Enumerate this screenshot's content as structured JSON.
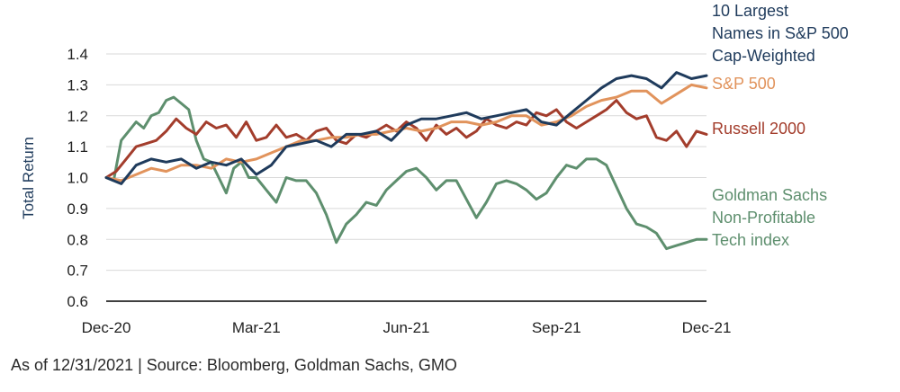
{
  "chart_data": {
    "type": "line",
    "title": "",
    "xlabel": "",
    "ylabel": "Total Return",
    "ylim": [
      0.6,
      1.4
    ],
    "yticks": [
      "0.6",
      "0.7",
      "0.8",
      "0.9",
      "1.0",
      "1.1",
      "1.2",
      "1.3",
      "1.4"
    ],
    "xlim": [
      0,
      12
    ],
    "xticks": [
      {
        "x": 0,
        "label": "Dec-20"
      },
      {
        "x": 3,
        "label": "Mar-21"
      },
      {
        "x": 6,
        "label": "Jun-21"
      },
      {
        "x": 9,
        "label": "Sep-21"
      },
      {
        "x": 12,
        "label": "Dec-21"
      }
    ],
    "series": [
      {
        "name": "Goldman Sachs Non-Profitable Tech index",
        "legend_lines": [
          "Goldman Sachs",
          "Non-Profitable",
          "Tech index"
        ],
        "color": "#5e8f6e",
        "x": [
          0,
          0.15,
          0.3,
          0.45,
          0.6,
          0.75,
          0.9,
          1.05,
          1.2,
          1.35,
          1.5,
          1.65,
          1.8,
          1.95,
          2.1,
          2.25,
          2.4,
          2.55,
          2.7,
          2.85,
          3.0,
          3.2,
          3.4,
          3.6,
          3.8,
          4.0,
          4.2,
          4.4,
          4.6,
          4.8,
          5.0,
          5.2,
          5.4,
          5.6,
          5.8,
          6.0,
          6.2,
          6.4,
          6.6,
          6.8,
          7.0,
          7.2,
          7.4,
          7.6,
          7.8,
          8.0,
          8.2,
          8.4,
          8.6,
          8.8,
          9.0,
          9.2,
          9.4,
          9.6,
          9.8,
          10.0,
          10.2,
          10.4,
          10.6,
          10.8,
          11.0,
          11.2,
          11.4,
          11.6,
          11.8,
          12.0
        ],
        "values": [
          1.0,
          0.99,
          1.12,
          1.15,
          1.18,
          1.16,
          1.2,
          1.21,
          1.25,
          1.26,
          1.24,
          1.22,
          1.12,
          1.06,
          1.05,
          1.0,
          0.95,
          1.03,
          1.05,
          1.0,
          1.0,
          0.96,
          0.92,
          1.0,
          0.99,
          0.99,
          0.95,
          0.88,
          0.79,
          0.85,
          0.88,
          0.92,
          0.91,
          0.96,
          0.99,
          1.02,
          1.03,
          1.0,
          0.96,
          0.99,
          0.99,
          0.93,
          0.87,
          0.92,
          0.98,
          0.99,
          0.98,
          0.96,
          0.93,
          0.95,
          1.0,
          1.04,
          1.03,
          1.06,
          1.06,
          1.04,
          0.97,
          0.9,
          0.85,
          0.84,
          0.82,
          0.77,
          0.78,
          0.79,
          0.8,
          0.8
        ]
      },
      {
        "name": "Russell 2000",
        "legend_lines": [
          "Russell 2000"
        ],
        "color": "#a33d2c",
        "x": [
          0,
          0.2,
          0.4,
          0.6,
          0.8,
          1.0,
          1.2,
          1.4,
          1.6,
          1.8,
          2.0,
          2.2,
          2.4,
          2.6,
          2.8,
          3.0,
          3.2,
          3.4,
          3.6,
          3.8,
          4.0,
          4.2,
          4.4,
          4.6,
          4.8,
          5.0,
          5.2,
          5.4,
          5.6,
          5.8,
          6.0,
          6.2,
          6.4,
          6.6,
          6.8,
          7.0,
          7.2,
          7.4,
          7.6,
          7.8,
          8.0,
          8.2,
          8.4,
          8.6,
          8.8,
          9.0,
          9.2,
          9.4,
          9.6,
          9.8,
          10.0,
          10.2,
          10.4,
          10.6,
          10.8,
          11.0,
          11.2,
          11.4,
          11.6,
          11.8,
          12.0
        ],
        "values": [
          1.0,
          1.02,
          1.06,
          1.1,
          1.11,
          1.12,
          1.15,
          1.19,
          1.16,
          1.14,
          1.18,
          1.16,
          1.17,
          1.13,
          1.18,
          1.12,
          1.13,
          1.17,
          1.13,
          1.14,
          1.12,
          1.15,
          1.16,
          1.12,
          1.11,
          1.14,
          1.13,
          1.15,
          1.17,
          1.15,
          1.18,
          1.16,
          1.12,
          1.17,
          1.14,
          1.16,
          1.13,
          1.15,
          1.19,
          1.17,
          1.16,
          1.18,
          1.17,
          1.21,
          1.2,
          1.22,
          1.18,
          1.16,
          1.18,
          1.2,
          1.22,
          1.25,
          1.21,
          1.19,
          1.2,
          1.13,
          1.12,
          1.15,
          1.1,
          1.15,
          1.14
        ]
      },
      {
        "name": "S&P 500",
        "legend_lines": [
          "S&P 500"
        ],
        "color": "#e1935c",
        "x": [
          0,
          0.3,
          0.6,
          0.9,
          1.2,
          1.5,
          1.8,
          2.1,
          2.4,
          2.7,
          3.0,
          3.3,
          3.6,
          3.9,
          4.2,
          4.5,
          4.8,
          5.1,
          5.4,
          5.7,
          6.0,
          6.3,
          6.6,
          6.9,
          7.2,
          7.5,
          7.8,
          8.1,
          8.4,
          8.7,
          9.0,
          9.3,
          9.6,
          9.9,
          10.2,
          10.5,
          10.8,
          11.1,
          11.4,
          11.7,
          12.0
        ],
        "values": [
          1.0,
          0.99,
          1.01,
          1.03,
          1.02,
          1.04,
          1.04,
          1.03,
          1.06,
          1.05,
          1.06,
          1.08,
          1.1,
          1.12,
          1.12,
          1.13,
          1.13,
          1.14,
          1.14,
          1.15,
          1.16,
          1.15,
          1.16,
          1.18,
          1.18,
          1.17,
          1.18,
          1.2,
          1.2,
          1.17,
          1.18,
          1.2,
          1.23,
          1.25,
          1.26,
          1.28,
          1.28,
          1.24,
          1.27,
          1.3,
          1.29
        ]
      },
      {
        "name": "10 Largest Names in S&P 500 Cap-Weighted",
        "legend_lines": [
          "10 Largest",
          "Names in S&P 500",
          "Cap-Weighted"
        ],
        "color": "#1f3b5c",
        "x": [
          0,
          0.3,
          0.6,
          0.9,
          1.2,
          1.5,
          1.8,
          2.1,
          2.4,
          2.7,
          3.0,
          3.3,
          3.6,
          3.9,
          4.2,
          4.5,
          4.8,
          5.1,
          5.4,
          5.7,
          6.0,
          6.3,
          6.6,
          6.9,
          7.2,
          7.5,
          7.8,
          8.1,
          8.4,
          8.7,
          9.0,
          9.3,
          9.6,
          9.9,
          10.2,
          10.5,
          10.8,
          11.1,
          11.4,
          11.7,
          12.0
        ],
        "values": [
          1.0,
          0.98,
          1.04,
          1.06,
          1.05,
          1.06,
          1.03,
          1.05,
          1.04,
          1.06,
          1.01,
          1.04,
          1.1,
          1.11,
          1.12,
          1.1,
          1.14,
          1.14,
          1.15,
          1.12,
          1.17,
          1.19,
          1.19,
          1.2,
          1.21,
          1.19,
          1.2,
          1.21,
          1.22,
          1.18,
          1.17,
          1.21,
          1.25,
          1.29,
          1.32,
          1.33,
          1.32,
          1.29,
          1.34,
          1.32,
          1.33
        ]
      }
    ]
  },
  "footnote": "As of 12/31/2021 | Source: Bloomberg, Goldman Sachs, GMO"
}
